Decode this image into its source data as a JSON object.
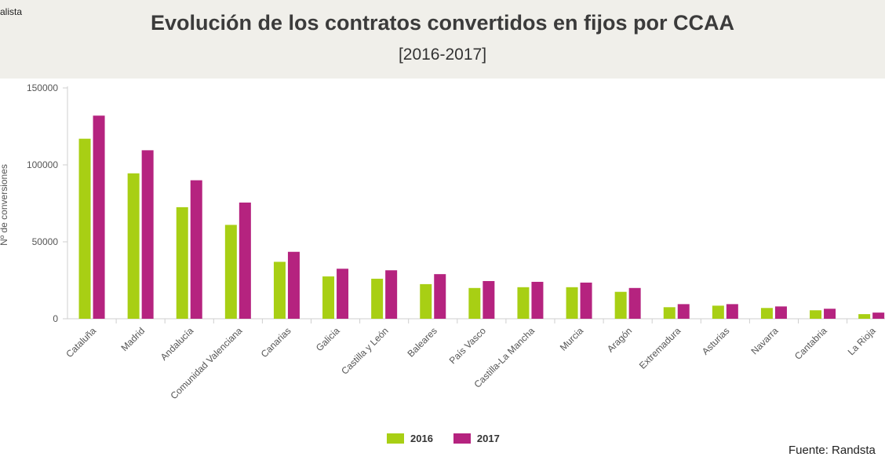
{
  "header": {
    "brand": "alista",
    "title": "Evolución de los contratos convertidos en fijos por CCAA",
    "subtitle": "[2016-2017]"
  },
  "source": "Fuente: Randsta",
  "chart_data": {
    "type": "bar",
    "categories": [
      "Cataluña",
      "Madrid",
      "Andalucía",
      "Comunidad Valenciana",
      "Canarias",
      "Galicia",
      "Castilla y León",
      "Baleares",
      "País Vasco",
      "Castilla-La Mancha",
      "Murcia",
      "Aragón",
      "Extremadura",
      "Asturias",
      "Navarra",
      "Cantabria",
      "La Rioja"
    ],
    "series": [
      {
        "name": "2016",
        "color": "#a8cf14",
        "values": [
          117000,
          94500,
          72500,
          61000,
          37000,
          27500,
          26000,
          22500,
          20000,
          20500,
          20500,
          17500,
          7500,
          8500,
          7000,
          5500,
          3000
        ]
      },
      {
        "name": "2017",
        "color": "#b5237f",
        "values": [
          132000,
          109500,
          90000,
          75500,
          43500,
          32500,
          31500,
          29000,
          24500,
          24000,
          23500,
          20000,
          9500,
          9500,
          8000,
          6500,
          4000
        ]
      }
    ],
    "yticks": [
      "0",
      "50000",
      "100000",
      "150000"
    ],
    "ylim": [
      0,
      150000
    ],
    "ylabel": "Nº de conversiones",
    "xlabel": "",
    "legend": "bottom-center",
    "grid": false
  }
}
